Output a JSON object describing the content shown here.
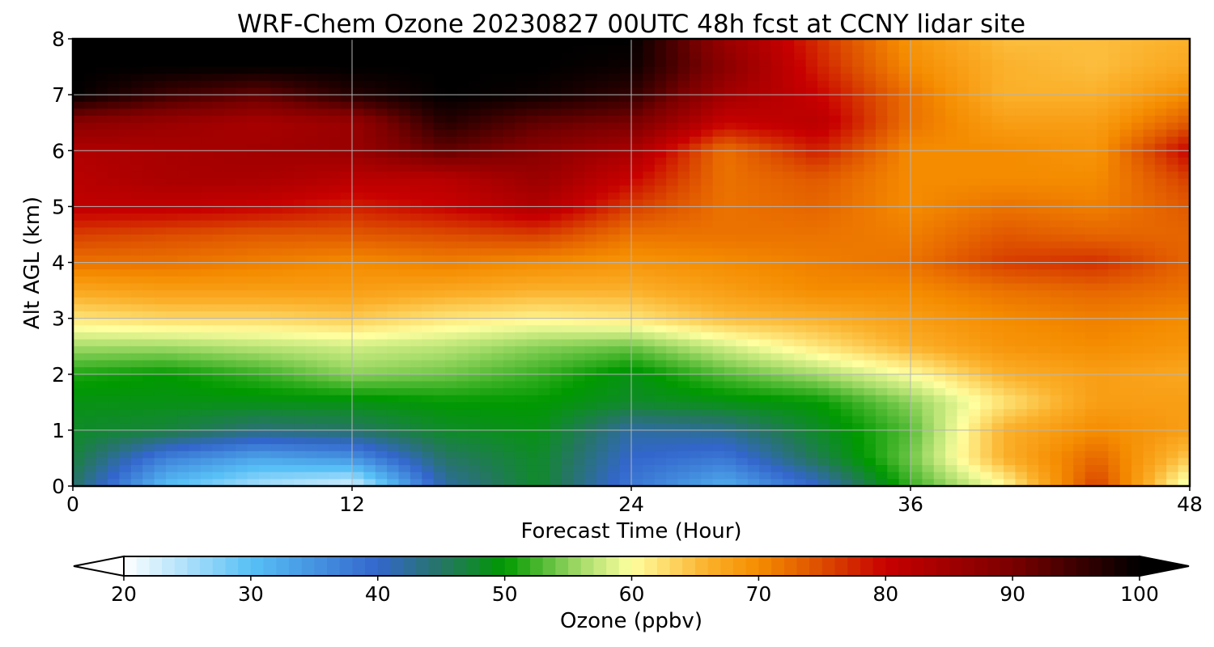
{
  "figure": {
    "title": "WRF-Chem Ozone  20230827 00UTC 48h fcst at CCNY lidar site"
  },
  "chart_data": {
    "type": "heatmap",
    "title": "WRF-Chem Ozone  20230827 00UTC 48h fcst at CCNY lidar site",
    "xlabel": "Forecast Time (Hour)",
    "ylabel": "Alt AGL (km)",
    "xlim": [
      0,
      48
    ],
    "ylim": [
      0,
      8
    ],
    "x_ticks": [
      0,
      12,
      24,
      36,
      48
    ],
    "y_ticks": [
      0,
      1,
      2,
      3,
      4,
      5,
      6,
      7,
      8
    ],
    "grid": true,
    "x": [
      0,
      4,
      8,
      12,
      16,
      20,
      24,
      28,
      32,
      36,
      40,
      44,
      48
    ],
    "y": [
      0,
      0.5,
      1,
      1.5,
      2,
      2.5,
      3,
      3.5,
      4,
      4.5,
      5,
      5.5,
      6,
      6.5,
      7,
      7.5,
      8
    ],
    "z": [
      [
        45,
        30,
        25,
        22,
        42,
        48,
        38,
        32,
        40,
        52,
        60,
        76,
        58
      ],
      [
        47,
        37,
        33,
        35,
        45,
        48,
        40,
        38,
        46,
        54,
        66,
        73,
        64
      ],
      [
        48,
        47,
        44,
        45,
        48,
        49,
        42,
        43,
        48,
        53,
        66,
        70,
        68
      ],
      [
        49,
        49,
        49,
        49,
        50,
        50,
        48,
        49,
        50,
        55,
        62,
        68,
        68
      ],
      [
        51,
        50,
        52,
        55,
        54,
        52,
        49,
        53,
        56,
        60,
        66,
        68,
        67
      ],
      [
        56,
        56,
        57,
        58,
        57,
        55,
        54,
        58,
        62,
        66,
        69,
        70,
        69
      ],
      [
        62,
        63,
        63,
        64,
        62,
        61,
        62,
        65,
        66,
        68,
        70,
        71,
        70
      ],
      [
        67,
        68,
        68,
        68,
        67,
        66,
        66,
        68,
        70,
        70,
        72,
        73,
        72
      ],
      [
        72,
        72,
        71,
        70,
        71,
        70,
        69,
        70,
        71,
        72,
        76,
        77,
        73
      ],
      [
        76,
        75,
        74,
        74,
        75,
        76,
        72,
        72,
        72,
        71,
        74,
        73,
        73
      ],
      [
        81,
        81,
        80,
        78,
        80,
        83,
        76,
        72,
        73,
        70,
        72,
        71,
        74
      ],
      [
        82,
        84,
        84,
        82,
        82,
        86,
        80,
        72,
        74,
        70,
        70,
        70,
        76
      ],
      [
        83,
        84,
        85,
        86,
        92,
        88,
        84,
        72,
        78,
        70,
        70,
        69,
        80
      ],
      [
        88,
        86,
        84,
        86,
        97,
        92,
        90,
        80,
        82,
        72,
        68,
        68,
        74
      ],
      [
        100,
        95,
        92,
        97,
        100,
        99,
        96,
        85,
        80,
        72,
        66,
        66,
        70
      ],
      [
        100,
        100,
        100,
        100,
        100,
        100,
        99,
        88,
        78,
        70,
        66,
        65,
        67
      ],
      [
        100,
        100,
        100,
        100,
        100,
        100,
        100,
        86,
        77,
        69,
        65,
        65,
        66
      ]
    ],
    "colorbar": {
      "label": "Ozone  (ppbv)",
      "ticks": [
        20,
        30,
        40,
        50,
        60,
        70,
        80,
        90,
        100
      ],
      "range": [
        20,
        100
      ],
      "extend": "both",
      "colors": [
        {
          "v": 20,
          "c": "#ffffff"
        },
        {
          "v": 30,
          "c": "#58c0f6"
        },
        {
          "v": 40,
          "c": "#3366cc"
        },
        {
          "v": 45,
          "c": "#267565"
        },
        {
          "v": 50,
          "c": "#009900"
        },
        {
          "v": 56,
          "c": "#a6dc6a"
        },
        {
          "v": 60,
          "c": "#ffffa0"
        },
        {
          "v": 66,
          "c": "#fbb02a"
        },
        {
          "v": 70,
          "c": "#f58c00"
        },
        {
          "v": 75,
          "c": "#dc4c00"
        },
        {
          "v": 80,
          "c": "#c80000"
        },
        {
          "v": 90,
          "c": "#7a0000"
        },
        {
          "v": 100,
          "c": "#000000"
        }
      ]
    }
  }
}
